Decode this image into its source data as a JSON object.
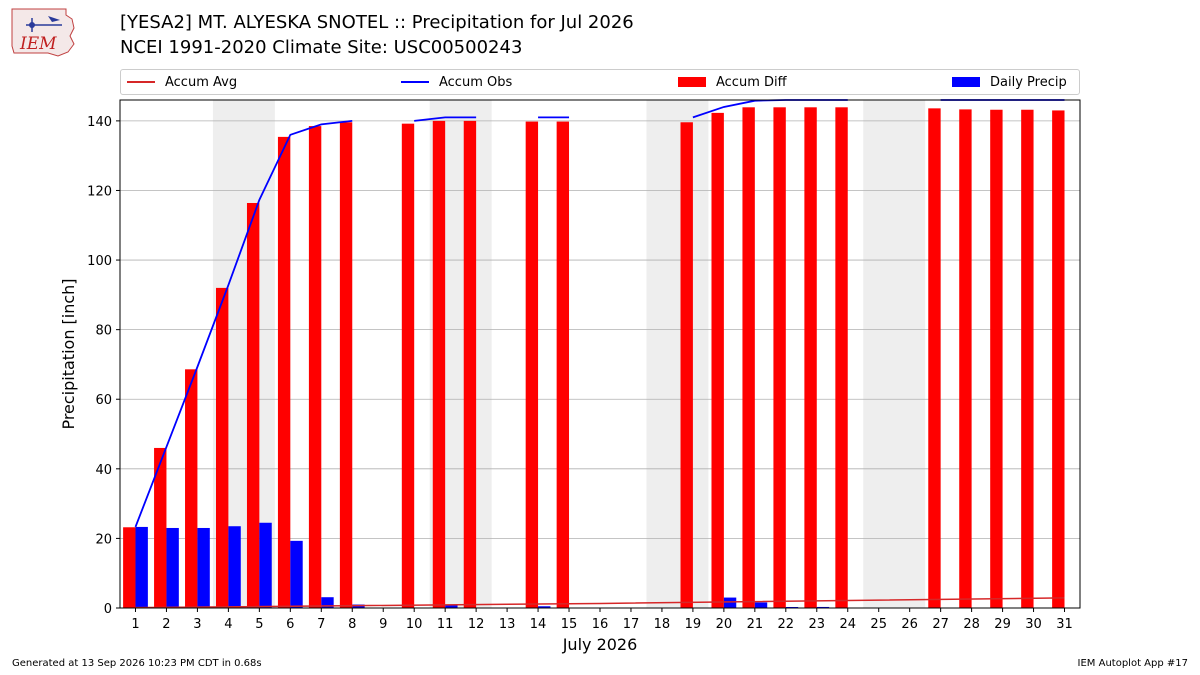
{
  "title": "[YESA2] MT. ALYESKA SNOTEL :: Precipitation for Jul 2026",
  "subtitle": "NCEI 1991-2020 Climate Site: USC00500243",
  "logo_text": "IEM",
  "legend": [
    {
      "label": "Accum Avg",
      "kind": "line",
      "color": "#d62728"
    },
    {
      "label": "Accum Obs",
      "kind": "line",
      "color": "#0000ff"
    },
    {
      "label": "Accum Diff",
      "kind": "bar",
      "color": "#ff0000"
    },
    {
      "label": "Daily Precip",
      "kind": "bar",
      "color": "#0000ff"
    }
  ],
  "footer": {
    "generated": "Generated at 13 Sep 2026 10:23 PM CDT in 0.68s",
    "app": "IEM Autoplot App #17"
  },
  "chart_data": {
    "type": "bar",
    "title": "[YESA2] MT. ALYESKA SNOTEL :: Precipitation for Jul 2026",
    "xlabel": "July 2026",
    "ylabel": "Precipitation [inch]",
    "xlim": [
      0.5,
      31.5
    ],
    "ylim": [
      0,
      146
    ],
    "yticks": [
      0,
      20,
      40,
      60,
      80,
      100,
      120,
      140
    ],
    "categories": [
      1,
      2,
      3,
      4,
      5,
      6,
      7,
      8,
      9,
      10,
      11,
      12,
      13,
      14,
      15,
      16,
      17,
      18,
      19,
      20,
      21,
      22,
      23,
      24,
      25,
      26,
      27,
      28,
      29,
      30,
      31
    ],
    "shaded_ranges": [
      [
        3.5,
        5.5
      ],
      [
        10.5,
        12.5
      ],
      [
        17.5,
        19.5
      ],
      [
        24.5,
        26.5
      ]
    ],
    "grid": true,
    "legend_position": "top",
    "series": [
      {
        "name": "Accum Diff",
        "kind": "bar",
        "color": "#ff0000",
        "values": [
          23.2,
          46,
          68.6,
          92,
          116.4,
          135.4,
          138.5,
          139.6,
          null,
          139.2,
          140,
          140,
          null,
          139.8,
          139.8,
          null,
          null,
          null,
          139.6,
          142.3,
          143.9,
          143.9,
          143.9,
          143.9,
          null,
          null,
          143.6,
          143.3,
          143.2,
          143.2,
          143
        ]
      },
      {
        "name": "Daily Precip",
        "kind": "bar",
        "color": "#0000ff",
        "values": [
          23.3,
          23,
          23,
          23.5,
          24.5,
          19.3,
          3.1,
          1,
          null,
          null,
          1,
          null,
          null,
          0.5,
          null,
          null,
          null,
          null,
          null,
          3,
          1.6,
          0.2,
          0.3,
          null,
          null,
          null,
          null,
          null,
          null,
          null,
          null
        ]
      },
      {
        "name": "Accum Obs",
        "kind": "line",
        "color": "#0000ff",
        "segments": [
          [
            [
              1,
              23.3
            ],
            [
              2,
              46.3
            ],
            [
              3,
              69.3
            ],
            [
              4,
              92.8
            ],
            [
              5,
              117.3
            ],
            [
              6,
              136
            ],
            [
              7,
              139
            ],
            [
              8,
              140
            ]
          ],
          [
            [
              10,
              140
            ],
            [
              11,
              141
            ],
            [
              12,
              141
            ]
          ],
          [
            [
              14,
              141
            ],
            [
              15,
              141
            ]
          ],
          [
            [
              19,
              141
            ],
            [
              20,
              144
            ],
            [
              21,
              145.8
            ],
            [
              22,
              146
            ],
            [
              23,
              146
            ],
            [
              24,
              146
            ]
          ],
          [
            [
              27,
              146
            ],
            [
              28,
              146
            ],
            [
              29,
              146
            ],
            [
              30,
              146
            ],
            [
              31,
              146
            ]
          ]
        ]
      },
      {
        "name": "Accum Avg",
        "kind": "line",
        "color": "#d62728",
        "points": [
          [
            1,
            0.1
          ],
          [
            16,
            1.3
          ],
          [
            31,
            2.9
          ]
        ]
      }
    ]
  }
}
